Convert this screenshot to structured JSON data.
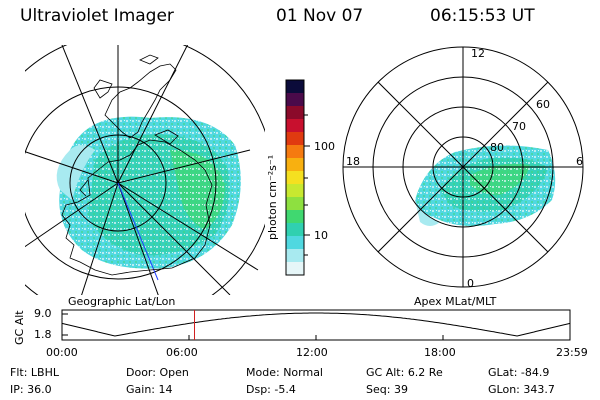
{
  "header": {
    "title": "Ultraviolet Imager",
    "date": "01 Nov 07",
    "time": "06:15:53 UT"
  },
  "left_panel": {
    "label": "Geographic Lat/Lon"
  },
  "right_panel": {
    "label": "Apex MLat/MLT",
    "mlt_labels": [
      "12",
      "18",
      "6",
      "0"
    ],
    "lat_labels": [
      "60",
      "70",
      "80"
    ]
  },
  "colorbar": {
    "unit": "photon cm⁻²s⁻¹",
    "ticks": [
      "100",
      "10"
    ],
    "colors": [
      "#0b0b3a",
      "#4a0a4a",
      "#8b0a2a",
      "#c8102e",
      "#e03a10",
      "#f57a10",
      "#f8b010",
      "#f5e020",
      "#c8e830",
      "#8ee040",
      "#40d870",
      "#30d0b0",
      "#50d8e0",
      "#a8eaf0",
      "#e6f6f8"
    ]
  },
  "timeline": {
    "ylabel": "GC Alt",
    "yticks": [
      "9.0",
      "1.8"
    ],
    "xticks": [
      "00:00",
      "06:00",
      "12:00",
      "18:00",
      "23:59"
    ],
    "marker_time_hours": 6.26
  },
  "info": {
    "flt_label": "Flt:",
    "flt": "LBHL",
    "door_label": "Door:",
    "door": "Open",
    "mode_label": "Mode:",
    "mode": "Normal",
    "gcalt_label": "GC Alt:",
    "gcalt": "6.2 Re",
    "glat_label": "GLat:",
    "glat": "-84.9",
    "ip_label": "IP:",
    "ip": "36.0",
    "gain_label": "Gain:",
    "gain": "14",
    "dsp_label": "Dsp:",
    "dsp": "-5.4",
    "seq_label": "Seq:",
    "seq": "39",
    "glon_label": "GLon:",
    "glon": "343.7"
  }
}
